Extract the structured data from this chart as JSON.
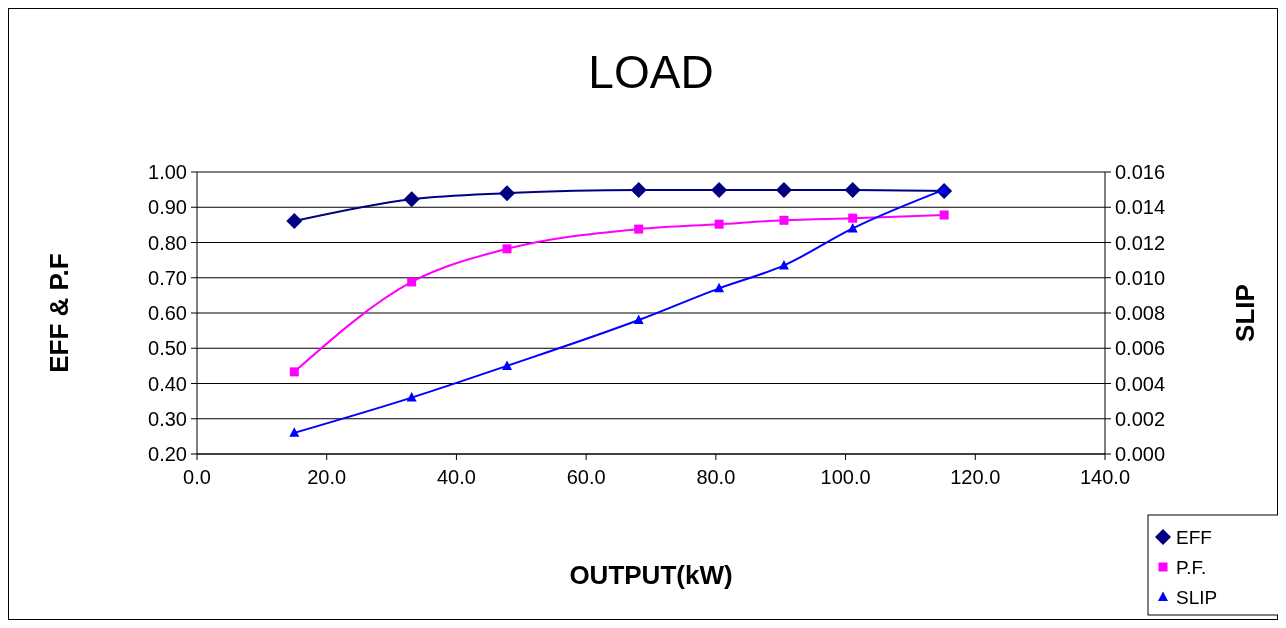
{
  "chart_data": {
    "type": "line",
    "title": "LOAD",
    "xlabel": "OUTPUT(kW)",
    "ylabel": "EFF & P.F",
    "y2label": "SLIP",
    "x": [
      15.0,
      33.1,
      47.8,
      68.1,
      80.5,
      90.5,
      101.1,
      115.2
    ],
    "series": [
      {
        "name": "EFF",
        "color": "#000080",
        "marker": "diamond",
        "values": [
          0.861,
          0.923,
          0.94,
          0.949,
          0.949,
          0.949,
          0.949,
          0.946
        ]
      },
      {
        "name": "P.F.",
        "color": "#ff00ff",
        "marker": "square",
        "values": [
          0.433,
          0.688,
          0.782,
          0.838,
          0.852,
          0.863,
          0.869,
          0.878
        ]
      },
      {
        "name": "SLIP",
        "color": "#0000ff",
        "marker": "triangle",
        "axis": "y2",
        "values": [
          0.0012,
          0.0032,
          0.005,
          0.0076,
          0.0094,
          0.0107,
          0.0128,
          0.015
        ]
      }
    ],
    "xlim": [
      0,
      140
    ],
    "xticks": [
      {
        "value": 0,
        "label": "0.0"
      },
      {
        "value": 20,
        "label": "20.0"
      },
      {
        "value": 40,
        "label": "40.0"
      },
      {
        "value": 60,
        "label": "60.0"
      },
      {
        "value": 80,
        "label": "80.0"
      },
      {
        "value": 100,
        "label": "100.0"
      },
      {
        "value": 120,
        "label": "120.0"
      },
      {
        "value": 140,
        "label": "140.0"
      }
    ],
    "ylim": [
      0.2,
      1.0
    ],
    "yticks": [
      {
        "value": 0.2,
        "label": "0.20"
      },
      {
        "value": 0.3,
        "label": "0.30"
      },
      {
        "value": 0.4,
        "label": "0.40"
      },
      {
        "value": 0.5,
        "label": "0.50"
      },
      {
        "value": 0.6,
        "label": "0.60"
      },
      {
        "value": 0.7,
        "label": "0.70"
      },
      {
        "value": 0.8,
        "label": "0.80"
      },
      {
        "value": 0.9,
        "label": "0.90"
      },
      {
        "value": 1.0,
        "label": "1.00"
      }
    ],
    "y2lim": [
      0,
      0.016
    ],
    "y2ticks": [
      {
        "value": 0,
        "label": "0.000"
      },
      {
        "value": 0.002,
        "label": "0.002"
      },
      {
        "value": 0.004,
        "label": "0.004"
      },
      {
        "value": 0.006,
        "label": "0.006"
      },
      {
        "value": 0.008,
        "label": "0.008"
      },
      {
        "value": 0.01,
        "label": "0.010"
      },
      {
        "value": 0.012,
        "label": "0.012"
      },
      {
        "value": 0.014,
        "label": "0.014"
      },
      {
        "value": 0.016,
        "label": "0.016"
      }
    ],
    "grid": "y",
    "legend": "bottom right",
    "line_style": "solid"
  }
}
